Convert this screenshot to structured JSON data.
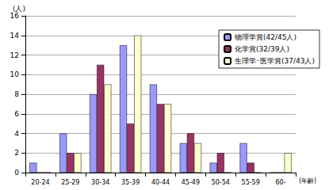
{
  "chart_data": {
    "type": "bar",
    "ylabel": "(人)",
    "xlabel": "(年齢)",
    "categories": [
      "20-24",
      "25-29",
      "30-34",
      "35-39",
      "40-44",
      "45-49",
      "50-54",
      "55-59",
      "60-"
    ],
    "series": [
      {
        "name": "物理学賞(42/45人)",
        "color": "#9999ff",
        "values": [
          1,
          4,
          8,
          13,
          9,
          3,
          1,
          3,
          0
        ]
      },
      {
        "name": "化学賞(32/39人)",
        "color": "#993366",
        "values": [
          0,
          2,
          11,
          5,
          7,
          4,
          2,
          1,
          0
        ]
      },
      {
        "name": "生理学･医学賞(37/43人)",
        "color": "#ffffcc",
        "values": [
          0,
          2,
          9,
          14,
          7,
          3,
          0,
          0,
          2
        ]
      }
    ],
    "ylim": [
      0,
      16
    ],
    "yticks": [
      0,
      2,
      4,
      6,
      8,
      10,
      12,
      14,
      16
    ],
    "grid": true,
    "legend": "top-right"
  }
}
